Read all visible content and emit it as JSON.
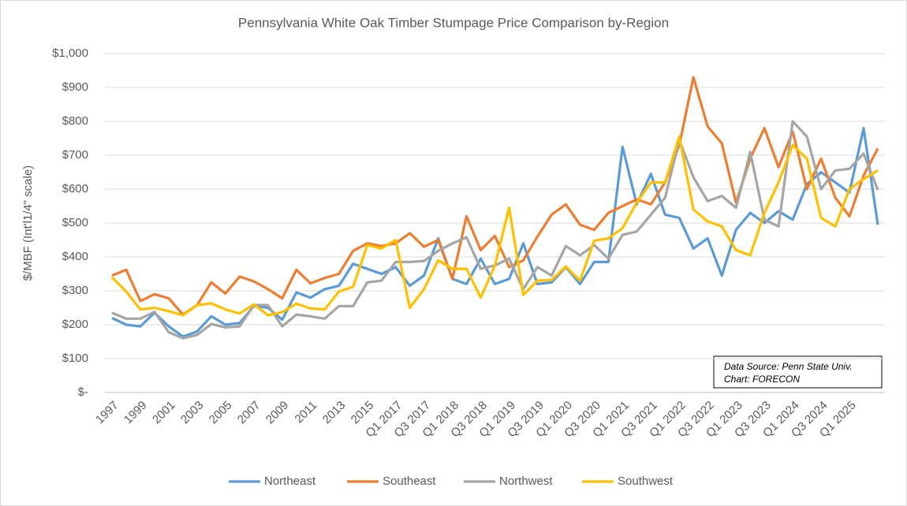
{
  "chart_data": {
    "type": "line",
    "title": "Pennsylvania White Oak Timber Stumpage Price Comparison by-Region",
    "y_label": "$/MBF (Int'l1/4\" scale)",
    "annotations": [
      "Data Source: Penn State Univ.",
      "Chart: FORECON"
    ],
    "categories": [
      "1997",
      null,
      "1999",
      null,
      "2001",
      null,
      "2003",
      null,
      "2005",
      null,
      "2007",
      null,
      "2009",
      null,
      "2011",
      null,
      "2013",
      null,
      "2015",
      null,
      "Q1 2017",
      null,
      "Q3 2017",
      null,
      "Q1 2018",
      null,
      "Q3 2018",
      null,
      "Q1 2019",
      null,
      "Q3 2019",
      null,
      "Q1 2020",
      null,
      "Q3 2020",
      null,
      "Q1 2021",
      null,
      "Q3 2021",
      null,
      "Q1 2022",
      null,
      "Q3 2022",
      null,
      "Q1 2023",
      null,
      "Q3 2023",
      null,
      "Q1 2024",
      null,
      "Q3 2024",
      null,
      "Q1 2025",
      null,
      null
    ],
    "series": [
      {
        "name": "Northeast",
        "color": "#5b9bd5",
        "values": [
          220,
          200,
          195,
          235,
          195,
          165,
          180,
          225,
          200,
          205,
          255,
          250,
          215,
          295,
          280,
          305,
          315,
          380,
          365,
          350,
          370,
          315,
          345,
          455,
          335,
          320,
          395,
          320,
          335,
          440,
          320,
          325,
          370,
          320,
          385,
          385,
          725,
          555,
          645,
          525,
          515,
          425,
          455,
          345,
          480,
          530,
          500,
          535,
          510,
          615,
          650,
          620,
          590,
          780,
          495
        ]
      },
      {
        "name": "Southeast",
        "color": "#ed7d31",
        "values": [
          345,
          362,
          270,
          290,
          278,
          230,
          258,
          325,
          292,
          342,
          328,
          305,
          278,
          362,
          322,
          338,
          350,
          418,
          440,
          432,
          440,
          470,
          430,
          450,
          335,
          520,
          420,
          462,
          370,
          390,
          460,
          525,
          555,
          495,
          480,
          530,
          550,
          570,
          555,
          620,
          730,
          930,
          785,
          735,
          560,
          690,
          780,
          665,
          770,
          600,
          690,
          575,
          520,
          640,
          720
        ]
      },
      {
        "name": "Northwest",
        "color": "#a5a5a5",
        "values": [
          235,
          218,
          218,
          238,
          178,
          160,
          170,
          202,
          192,
          195,
          258,
          258,
          195,
          230,
          225,
          218,
          255,
          255,
          325,
          330,
          385,
          385,
          388,
          418,
          440,
          458,
          365,
          375,
          395,
          305,
          370,
          345,
          432,
          405,
          435,
          395,
          465,
          475,
          525,
          575,
          745,
          635,
          565,
          580,
          545,
          710,
          510,
          490,
          800,
          755,
          600,
          655,
          660,
          705,
          598
        ]
      },
      {
        "name": "Southwest",
        "color": "#ffc000",
        "values": [
          340,
          298,
          245,
          250,
          240,
          228,
          258,
          263,
          245,
          233,
          260,
          228,
          237,
          262,
          248,
          245,
          298,
          312,
          435,
          425,
          450,
          250,
          305,
          390,
          365,
          365,
          280,
          375,
          545,
          288,
          330,
          332,
          372,
          330,
          448,
          455,
          485,
          560,
          620,
          620,
          755,
          540,
          505,
          490,
          420,
          405,
          530,
          620,
          730,
          690,
          515,
          490,
          600,
          630,
          655
        ]
      }
    ],
    "ylim": [
      0,
      1000
    ],
    "yticks": [
      {
        "value": 0,
        "label": "$-"
      },
      {
        "value": 100,
        "label": "$100"
      },
      {
        "value": 200,
        "label": "$200"
      },
      {
        "value": 300,
        "label": "$300"
      },
      {
        "value": 400,
        "label": "$400"
      },
      {
        "value": 500,
        "label": "$500"
      },
      {
        "value": 600,
        "label": "$600"
      },
      {
        "value": 700,
        "label": "$700"
      },
      {
        "value": 800,
        "label": "$800"
      },
      {
        "value": 900,
        "label": "$900"
      },
      {
        "value": 1000,
        "label": "$1,000"
      }
    ],
    "grid": true
  }
}
